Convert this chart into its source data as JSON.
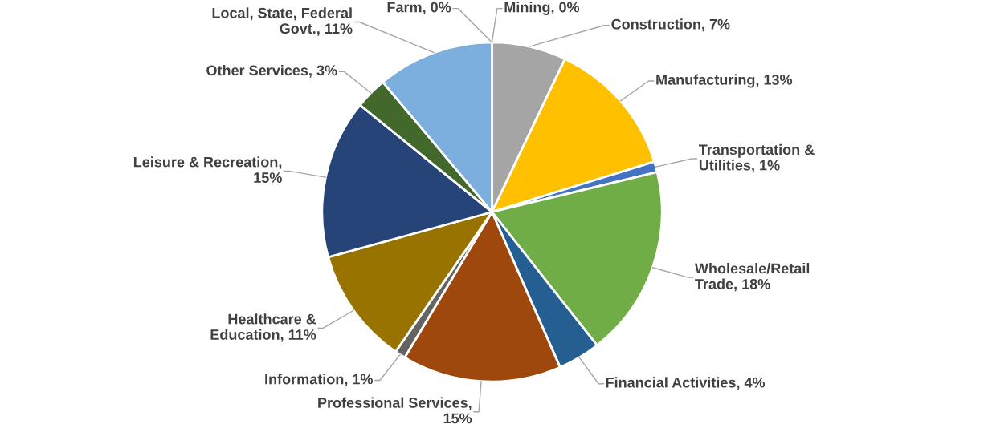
{
  "chart_data": {
    "type": "pie",
    "categories": [
      "Farm",
      "Mining",
      "Construction",
      "Manufacturing",
      "Transportation & Utilities",
      "Wholesale/Retail Trade",
      "Financial Activities",
      "Professional Services",
      "Information",
      "Healthcare & Education",
      "Leisure & Recreation",
      "Other Services",
      "Local, State, Federal Govt."
    ],
    "values": [
      0,
      0,
      7,
      13,
      1,
      18,
      4,
      15,
      1,
      11,
      15,
      3,
      11
    ],
    "colors": [
      "#5b9bd5",
      "#ed7d31",
      "#a5a5a5",
      "#ffc000",
      "#4472c4",
      "#70ad47",
      "#255e91",
      "#9e480e",
      "#636363",
      "#997300",
      "#264478",
      "#43682b",
      "#7cafdd"
    ],
    "value_labels": [
      ", 0%",
      ", 0%",
      ", 7%",
      ", 13%",
      ", 1%",
      ", 18%",
      ", 4%",
      ",\n15%",
      ", 1%",
      ", 11%",
      ",\n15%",
      ", 3%",
      ", 11%"
    ]
  }
}
